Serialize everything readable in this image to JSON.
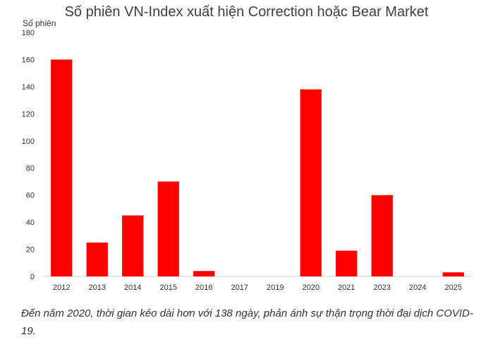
{
  "chart_data": {
    "type": "bar",
    "title": "Số phiên VN-Index xuất hiện Correction hoặc Bear Market",
    "ylabel": "Số phiên",
    "xlabel": "",
    "ylim": [
      0,
      180
    ],
    "yticks": [
      0,
      20,
      40,
      60,
      80,
      100,
      120,
      140,
      160,
      180
    ],
    "categories": [
      "2012",
      "2013",
      "2014",
      "2015",
      "2016",
      "2017",
      "2019",
      "2020",
      "2021",
      "2023",
      "2024",
      "2025"
    ],
    "values": [
      160,
      25,
      45,
      70,
      4,
      0,
      0,
      138,
      19,
      60,
      0,
      3
    ],
    "bar_color": "#ff0000",
    "grid": false,
    "legend": "none"
  },
  "caption": "Đến năm 2020, thời gian kéo dài hơn với 138 ngày, phản ánh sự thận trọng thời đại dịch COVID-19."
}
